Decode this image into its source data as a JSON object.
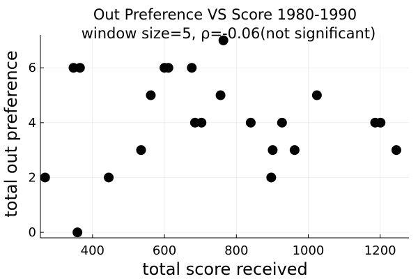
{
  "chart_data": {
    "type": "scatter",
    "title": "Out Preference VS Score 1980-1990",
    "subtitle": "window size=5, ρ=-0.06(not significant)",
    "xlabel": "total score received",
    "ylabel": "total out preference",
    "xlim": [
      255,
      1280
    ],
    "ylim": [
      -0.2,
      7.2
    ],
    "xticks": [
      400,
      600,
      800,
      1000,
      1200
    ],
    "yticks": [
      0,
      2,
      4,
      6
    ],
    "grid": true,
    "legend": "none",
    "marker_color": "#000000",
    "points": [
      {
        "x": 268,
        "y": 2
      },
      {
        "x": 347,
        "y": 6
      },
      {
        "x": 358,
        "y": 0
      },
      {
        "x": 365,
        "y": 6
      },
      {
        "x": 445,
        "y": 2
      },
      {
        "x": 535,
        "y": 3
      },
      {
        "x": 562,
        "y": 5
      },
      {
        "x": 600,
        "y": 6
      },
      {
        "x": 611,
        "y": 6
      },
      {
        "x": 676,
        "y": 6
      },
      {
        "x": 685,
        "y": 4
      },
      {
        "x": 703,
        "y": 4
      },
      {
        "x": 756,
        "y": 5
      },
      {
        "x": 764,
        "y": 7
      },
      {
        "x": 840,
        "y": 4
      },
      {
        "x": 897,
        "y": 2
      },
      {
        "x": 901,
        "y": 3
      },
      {
        "x": 927,
        "y": 4
      },
      {
        "x": 962,
        "y": 3
      },
      {
        "x": 1024,
        "y": 5
      },
      {
        "x": 1186,
        "y": 4
      },
      {
        "x": 1201,
        "y": 4
      },
      {
        "x": 1245,
        "y": 3
      }
    ]
  }
}
